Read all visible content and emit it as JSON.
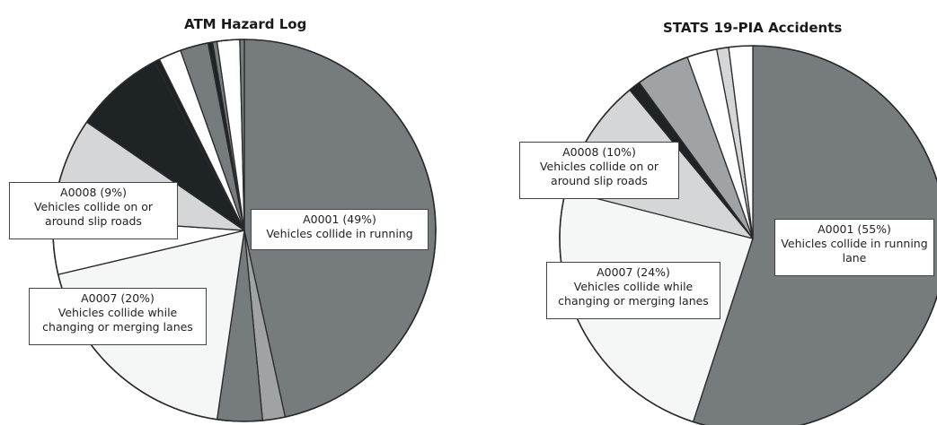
{
  "colors": {
    "dark_gray": "#767b7d",
    "light_gray": "#d4d6d7",
    "near_white": "#f5f6f6",
    "black": "#1e2326",
    "mid_gray": "#9fa3a5",
    "white": "#ffffff",
    "outline": "#2a2a2a"
  },
  "chart_data": [
    {
      "type": "pie",
      "title": "ATM Hazard Log",
      "slices": [
        {
          "label": "A0001 (49%)",
          "value": 49,
          "color": "dark_gray"
        },
        {
          "label": "",
          "value": 2,
          "color": "mid_gray"
        },
        {
          "label": "",
          "value": 4,
          "color": "dark_gray"
        },
        {
          "label": "A0007 (20%)",
          "value": 20,
          "color": "near_white"
        },
        {
          "label": "",
          "value": 5,
          "color": "white"
        },
        {
          "label": "A0008 (9%)",
          "value": 9,
          "color": "light_gray"
        },
        {
          "label": "",
          "value": 8,
          "color": "black"
        },
        {
          "label": "",
          "value": 0.5,
          "color": "black"
        },
        {
          "label": "",
          "value": 2,
          "color": "white"
        },
        {
          "label": "",
          "value": 2.5,
          "color": "dark_gray"
        },
        {
          "label": "",
          "value": 0.4,
          "color": "black"
        },
        {
          "label": "",
          "value": 0.4,
          "color": "dark_gray"
        },
        {
          "label": "",
          "value": 2,
          "color": "white"
        },
        {
          "label": "",
          "value": 0.4,
          "color": "dark_gray"
        }
      ],
      "callouts": [
        {
          "lines": [
            "A0001 (49%)",
            "Vehicles collide in running"
          ]
        },
        {
          "lines": [
            "A0008 (9%)",
            "Vehicles collide on or",
            "around slip roads"
          ]
        },
        {
          "lines": [
            "A0007 (20%)",
            "Vehicles collide while",
            "changing or merging lanes"
          ]
        }
      ]
    },
    {
      "type": "pie",
      "title": "STATS 19-PIA Accidents",
      "slices": [
        {
          "label": "A0001 (55%)",
          "value": 55,
          "color": "dark_gray"
        },
        {
          "label": "A0007 (24%)",
          "value": 24,
          "color": "near_white"
        },
        {
          "label": "A0008 (10%)",
          "value": 10,
          "color": "light_gray"
        },
        {
          "label": "",
          "value": 1,
          "color": "black"
        },
        {
          "label": "",
          "value": 4.5,
          "color": "mid_gray"
        },
        {
          "label": "",
          "value": 2.5,
          "color": "white"
        },
        {
          "label": "",
          "value": 1,
          "color": "light_gray"
        },
        {
          "label": "",
          "value": 2,
          "color": "white"
        }
      ],
      "callouts": [
        {
          "lines": [
            "A0001 (55%)",
            "Vehicles collide in running",
            "lane"
          ]
        },
        {
          "lines": [
            "A0008 (10%)",
            "Vehicles collide on or",
            "around slip roads"
          ]
        },
        {
          "lines": [
            "A0007 (24%)",
            "Vehicles collide while",
            "changing or merging lanes"
          ]
        }
      ]
    }
  ]
}
